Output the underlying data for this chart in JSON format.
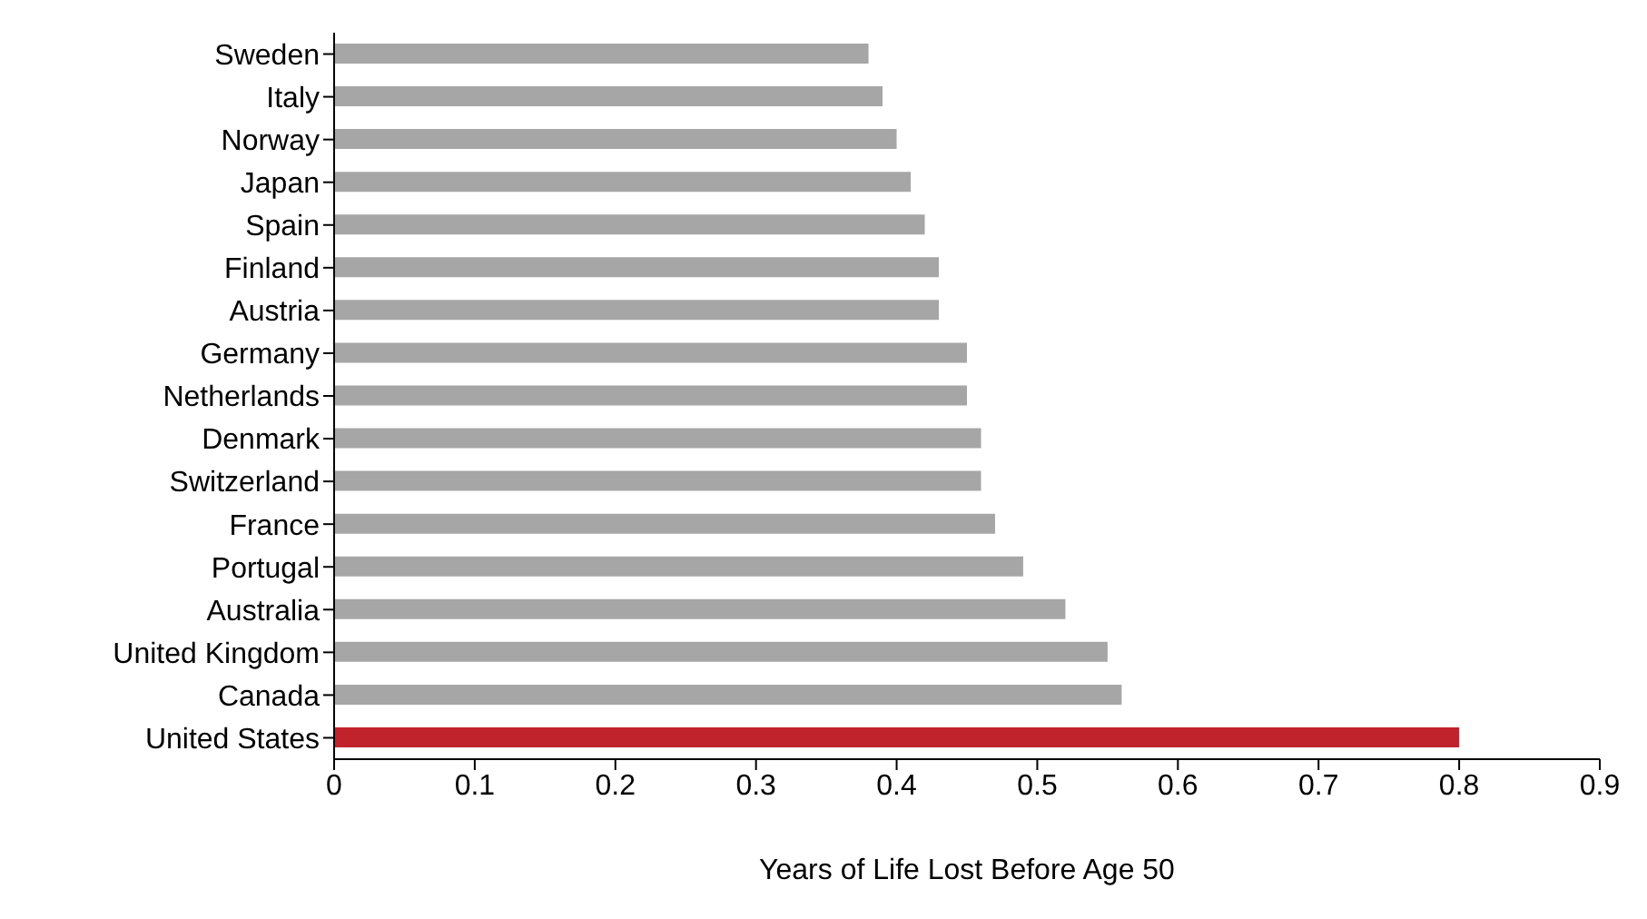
{
  "chart_data": {
    "type": "bar",
    "orientation": "horizontal",
    "xlabel": "Years of Life Lost Before Age 50",
    "categories": [
      "Sweden",
      "Italy",
      "Norway",
      "Japan",
      "Spain",
      "Finland",
      "Austria",
      "Germany",
      "Netherlands",
      "Denmark",
      "Switzerland",
      "France",
      "Portugal",
      "Australia",
      "United Kingdom",
      "Canada",
      "United States"
    ],
    "values": [
      0.38,
      0.39,
      0.4,
      0.41,
      0.42,
      0.43,
      0.43,
      0.45,
      0.45,
      0.46,
      0.46,
      0.47,
      0.49,
      0.52,
      0.55,
      0.56,
      0.8
    ],
    "colors": [
      "#a6a6a6",
      "#a6a6a6",
      "#a6a6a6",
      "#a6a6a6",
      "#a6a6a6",
      "#a6a6a6",
      "#a6a6a6",
      "#a6a6a6",
      "#a6a6a6",
      "#a6a6a6",
      "#a6a6a6",
      "#a6a6a6",
      "#a6a6a6",
      "#a6a6a6",
      "#a6a6a6",
      "#a6a6a6",
      "#c0232c"
    ],
    "xlim": [
      0,
      0.9
    ],
    "xticks": [
      0,
      0.1,
      0.2,
      0.3,
      0.4,
      0.5,
      0.6,
      0.7,
      0.8,
      0.9
    ],
    "grid": false,
    "legend": false
  }
}
